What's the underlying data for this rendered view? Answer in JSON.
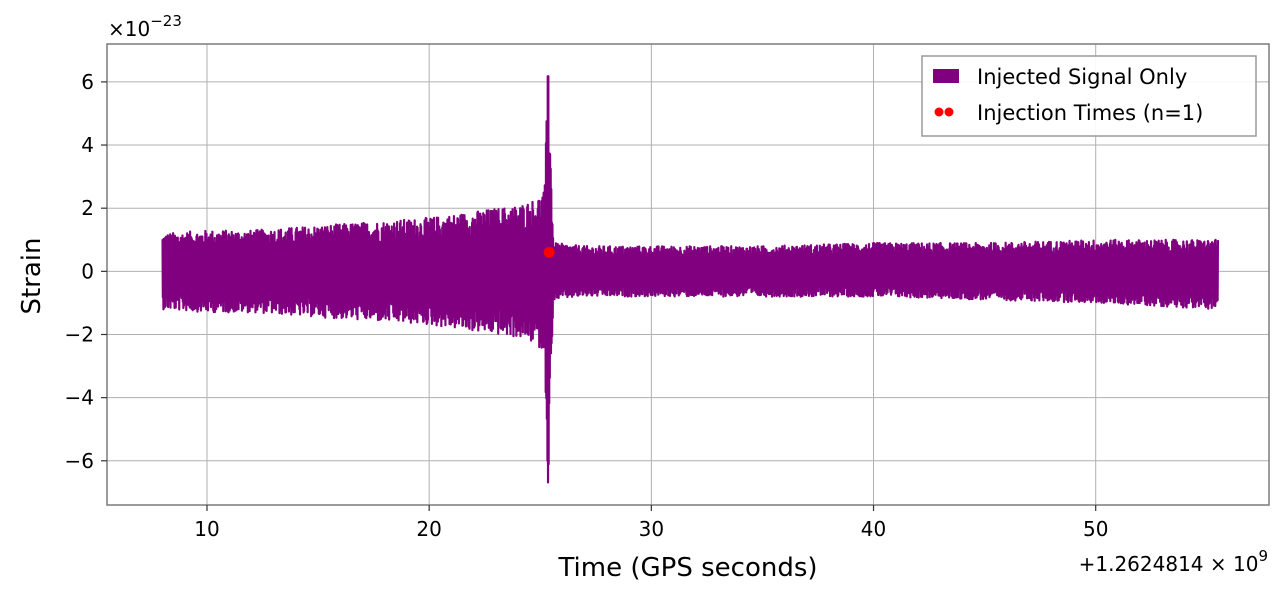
{
  "chart_data": {
    "type": "line",
    "title": "",
    "xlabel": "Time (GPS seconds)",
    "ylabel": "Strain",
    "x_offset_label": "+1.2624814 × 10",
    "x_offset_exponent": "9",
    "y_scale_label": "×10",
    "y_scale_exponent": "−23",
    "xlim": [
      5.5,
      57.8
    ],
    "ylim": [
      -7.4,
      7.2
    ],
    "grid": true,
    "legend_position": "top-right",
    "x_ticks": [
      10,
      20,
      30,
      40,
      50
    ],
    "x_tick_labels": [
      "10",
      "20",
      "30",
      "40",
      "50"
    ],
    "y_ticks": [
      -6,
      -4,
      -2,
      0,
      2,
      4,
      6
    ],
    "y_tick_labels": [
      "−6",
      "−4",
      "−2",
      "0",
      "2",
      "4",
      "6"
    ],
    "series": [
      {
        "name": "Injected Signal Only",
        "color": "#800080",
        "envelope": {
          "x": [
            8.0,
            10.0,
            12.0,
            14.0,
            16.0,
            18.0,
            20.0,
            21.0,
            22.0,
            23.0,
            24.0,
            24.8,
            25.2,
            25.35,
            25.45,
            25.6,
            27.0,
            30.0,
            35.0,
            40.0,
            45.0,
            50.0,
            55.5
          ],
          "upper": [
            1.2,
            1.3,
            1.3,
            1.4,
            1.5,
            1.6,
            1.7,
            1.8,
            1.9,
            2.0,
            2.1,
            2.3,
            2.6,
            6.5,
            4.2,
            0.9,
            0.8,
            0.8,
            0.8,
            0.9,
            0.9,
            1.0,
            1.0
          ],
          "lower": [
            -1.2,
            -1.3,
            -1.3,
            -1.4,
            -1.5,
            -1.6,
            -1.7,
            -1.8,
            -1.9,
            -2.0,
            -2.1,
            -2.3,
            -2.6,
            -6.7,
            -4.5,
            -0.9,
            -0.8,
            -0.8,
            -0.8,
            -0.8,
            -0.9,
            -1.0,
            -1.2
          ]
        }
      },
      {
        "name": "Injection Times (n=1)",
        "color": "#ff0000",
        "points": [
          {
            "x": 25.4,
            "y": 0.6
          }
        ]
      }
    ]
  }
}
